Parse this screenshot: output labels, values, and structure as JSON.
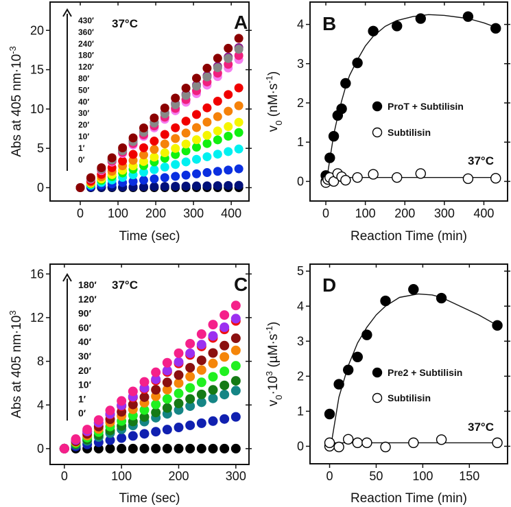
{
  "chart_data": [
    {
      "panel": "A",
      "type": "scatter",
      "panel_label": "A",
      "temperature": "37°C",
      "xlabel": "Time (sec)",
      "ylabel": {
        "main": "Abs at 405 nm·10",
        "sup": "-3"
      },
      "xlim": [
        -80,
        447
      ],
      "ylim": [
        -1.7,
        23.6
      ],
      "xticks": [
        0,
        100,
        200,
        300,
        400
      ],
      "yticks": [
        0,
        5,
        10,
        15,
        20
      ],
      "legend_order": "top-to-bottom, arrow pointing up",
      "x": [
        0,
        28,
        56,
        84,
        112,
        140,
        168,
        196,
        224,
        252,
        280,
        308,
        336,
        364,
        392,
        420
      ],
      "series": [
        {
          "name": "430′",
          "color": "#8b0000",
          "slope_per_sec": 0.0452
        },
        {
          "name": "360′",
          "color": "#888888",
          "slope_per_sec": 0.0419
        },
        {
          "name": "240′",
          "color": "#8b1a8b",
          "slope_per_sec": 0.0424
        },
        {
          "name": "180′",
          "color": "#f0207f",
          "slope_per_sec": 0.04
        },
        {
          "name": "120′",
          "color": "#f57ef0",
          "slope_per_sec": 0.0388
        },
        {
          "name": "80′",
          "color": "#f00000",
          "slope_per_sec": 0.0302
        },
        {
          "name": "50′",
          "color": "#f5820a",
          "slope_per_sec": 0.0248
        },
        {
          "name": "40′",
          "color": "#f5f500",
          "slope_per_sec": 0.0198
        },
        {
          "name": "30′",
          "color": "#10f010",
          "slope_per_sec": 0.0167
        },
        {
          "name": "20′",
          "color": "#00f0f0",
          "slope_per_sec": 0.0117
        },
        {
          "name": "10′",
          "color": "#0a2fe0",
          "slope_per_sec": 0.0057
        },
        {
          "name": "1′",
          "color": "#00107a",
          "slope_per_sec": 0.0007
        },
        {
          "name": "0′",
          "color": "#000000",
          "slope_per_sec": 0.0
        }
      ]
    },
    {
      "panel": "B",
      "type": "scatter",
      "panel_label": "B",
      "temperature": "37°C",
      "xlabel": "Reaction Time (min)",
      "ylabel": {
        "main": "v",
        "sub": "0",
        "rest": " (nM·s",
        "sup": "-1",
        "end": ")"
      },
      "xlim": [
        -40,
        460
      ],
      "ylim": [
        -0.5,
        4.57
      ],
      "xticks": [
        0,
        100,
        200,
        300,
        400
      ],
      "yticks": [
        0,
        1,
        2,
        3,
        4
      ],
      "series": [
        {
          "name": "ProT + Subtilisin",
          "filled": true,
          "x": [
            0,
            10,
            20,
            30,
            40,
            50,
            80,
            120,
            180,
            240,
            360,
            430
          ],
          "y": [
            0.15,
            0.6,
            1.15,
            1.68,
            1.85,
            2.5,
            3.02,
            3.83,
            3.96,
            4.15,
            4.2,
            3.9
          ],
          "fit": [
            [
              3,
              0.1
            ],
            [
              10,
              0.55
            ],
            [
              20,
              1.2
            ],
            [
              30,
              1.65
            ],
            [
              40,
              2.05
            ],
            [
              50,
              2.4
            ],
            [
              60,
              2.7
            ],
            [
              80,
              3.1
            ],
            [
              100,
              3.45
            ],
            [
              120,
              3.7
            ],
            [
              150,
              3.95
            ],
            [
              180,
              4.1
            ],
            [
              220,
              4.2
            ],
            [
              260,
              4.25
            ],
            [
              300,
              4.23
            ],
            [
              360,
              4.15
            ],
            [
              400,
              4.04
            ],
            [
              430,
              3.93
            ]
          ]
        },
        {
          "name": "Subtilisin",
          "filled": false,
          "x": [
            0,
            0,
            5,
            10,
            20,
            30,
            40,
            50,
            80,
            120,
            180,
            240,
            360,
            430
          ],
          "y": [
            0.0,
            -0.03,
            0.05,
            0.1,
            0.0,
            0.2,
            0.12,
            0.03,
            0.1,
            0.18,
            0.1,
            0.2,
            0.07,
            0.08
          ],
          "fit": [
            [
              0,
              0.1
            ],
            [
              430,
              0.1
            ]
          ]
        }
      ]
    },
    {
      "panel": "C",
      "type": "scatter",
      "panel_label": "C",
      "temperature": "37°C",
      "xlabel": "Time (sec)",
      "ylabel": {
        "main": "Abs at 405 nm·10",
        "sup": "3"
      },
      "xlim": [
        -25,
        323
      ],
      "ylim": [
        -1.45,
        16.9
      ],
      "xticks": [
        0,
        100,
        200,
        300
      ],
      "yticks": [
        0,
        4,
        8,
        12,
        16
      ],
      "legend_order": "top-to-bottom, arrow pointing up",
      "x": [
        0,
        20,
        40,
        60,
        80,
        100,
        120,
        140,
        160,
        180,
        200,
        220,
        240,
        260,
        280,
        300
      ],
      "series": [
        {
          "name": "180′",
          "color": "#f5208a",
          "slope_per_sec": 0.0437
        },
        {
          "name": "120′",
          "color": "#9b30f0",
          "slope_per_sec": 0.0397
        },
        {
          "name": "90′",
          "color": "#f01010",
          "slope_per_sec": 0.039
        },
        {
          "name": "60′",
          "color": "#8b1010",
          "slope_per_sec": 0.0337
        },
        {
          "name": "40′",
          "color": "#f5860a",
          "slope_per_sec": 0.03
        },
        {
          "name": "30′",
          "color": "#20f020",
          "slope_per_sec": 0.0253
        },
        {
          "name": "20′",
          "color": "#157a15",
          "slope_per_sec": 0.0207
        },
        {
          "name": "10′",
          "color": "#158585",
          "slope_per_sec": 0.0177
        },
        {
          "name": "1′",
          "color": "#1020b0",
          "slope_per_sec": 0.0097
        },
        {
          "name": "0′",
          "color": "#000000",
          "slope_per_sec": 0.0
        }
      ]
    },
    {
      "panel": "D",
      "type": "scatter",
      "panel_label": "D",
      "temperature": "37°C",
      "xlabel": "Reaction Time (min)",
      "ylabel": {
        "main": "v",
        "sub": "0",
        "rest": "·10",
        "sup": "3",
        "rest2": " (µM·s",
        "sup2": "-1",
        "end": ")"
      },
      "xlim": [
        -21,
        191
      ],
      "ylim": [
        -0.5,
        5.2
      ],
      "xticks": [
        0,
        50,
        100,
        150
      ],
      "yticks": [
        0,
        1,
        2,
        3,
        4,
        5
      ],
      "series": [
        {
          "name": "Pre2 + Subtilisin",
          "filled": true,
          "x": [
            0,
            10,
            20,
            30,
            40,
            60,
            90,
            120,
            180
          ],
          "y": [
            0.92,
            1.77,
            2.18,
            2.55,
            3.18,
            4.15,
            4.48,
            4.23,
            3.45
          ],
          "fit": [
            [
              2,
              0.1
            ],
            [
              10,
              1.4
            ],
            [
              20,
              2.3
            ],
            [
              30,
              2.95
            ],
            [
              40,
              3.4
            ],
            [
              50,
              3.75
            ],
            [
              60,
              4.0
            ],
            [
              75,
              4.25
            ],
            [
              95,
              4.35
            ],
            [
              110,
              4.32
            ],
            [
              120,
              4.25
            ],
            [
              140,
              4.0
            ],
            [
              160,
              3.75
            ],
            [
              180,
              3.45
            ]
          ]
        },
        {
          "name": "Subtilisin",
          "filled": false,
          "x": [
            0,
            0,
            10,
            20,
            30,
            40,
            60,
            90,
            120,
            180
          ],
          "y": [
            0.0,
            0.1,
            -0.02,
            0.2,
            0.1,
            0.1,
            -0.02,
            0.1,
            0.19,
            0.1
          ],
          "fit": [
            [
              0,
              0.1
            ],
            [
              180,
              0.1
            ]
          ]
        }
      ]
    }
  ]
}
